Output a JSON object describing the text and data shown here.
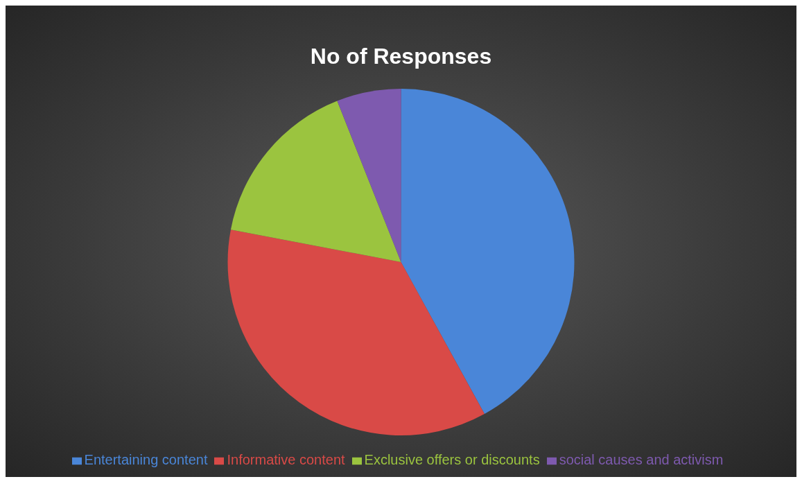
{
  "chart_data": {
    "type": "pie",
    "title": "No  of  Responses",
    "categories": [
      "Entertaining content",
      "Informative content",
      "Exclusive offers or discounts",
      "social causes and activism"
    ],
    "values": [
      42,
      36,
      16,
      6
    ],
    "colors": [
      "#4a86d8",
      "#d94a47",
      "#9bc43f",
      "#7e5aaf"
    ],
    "legend": "bottom"
  }
}
